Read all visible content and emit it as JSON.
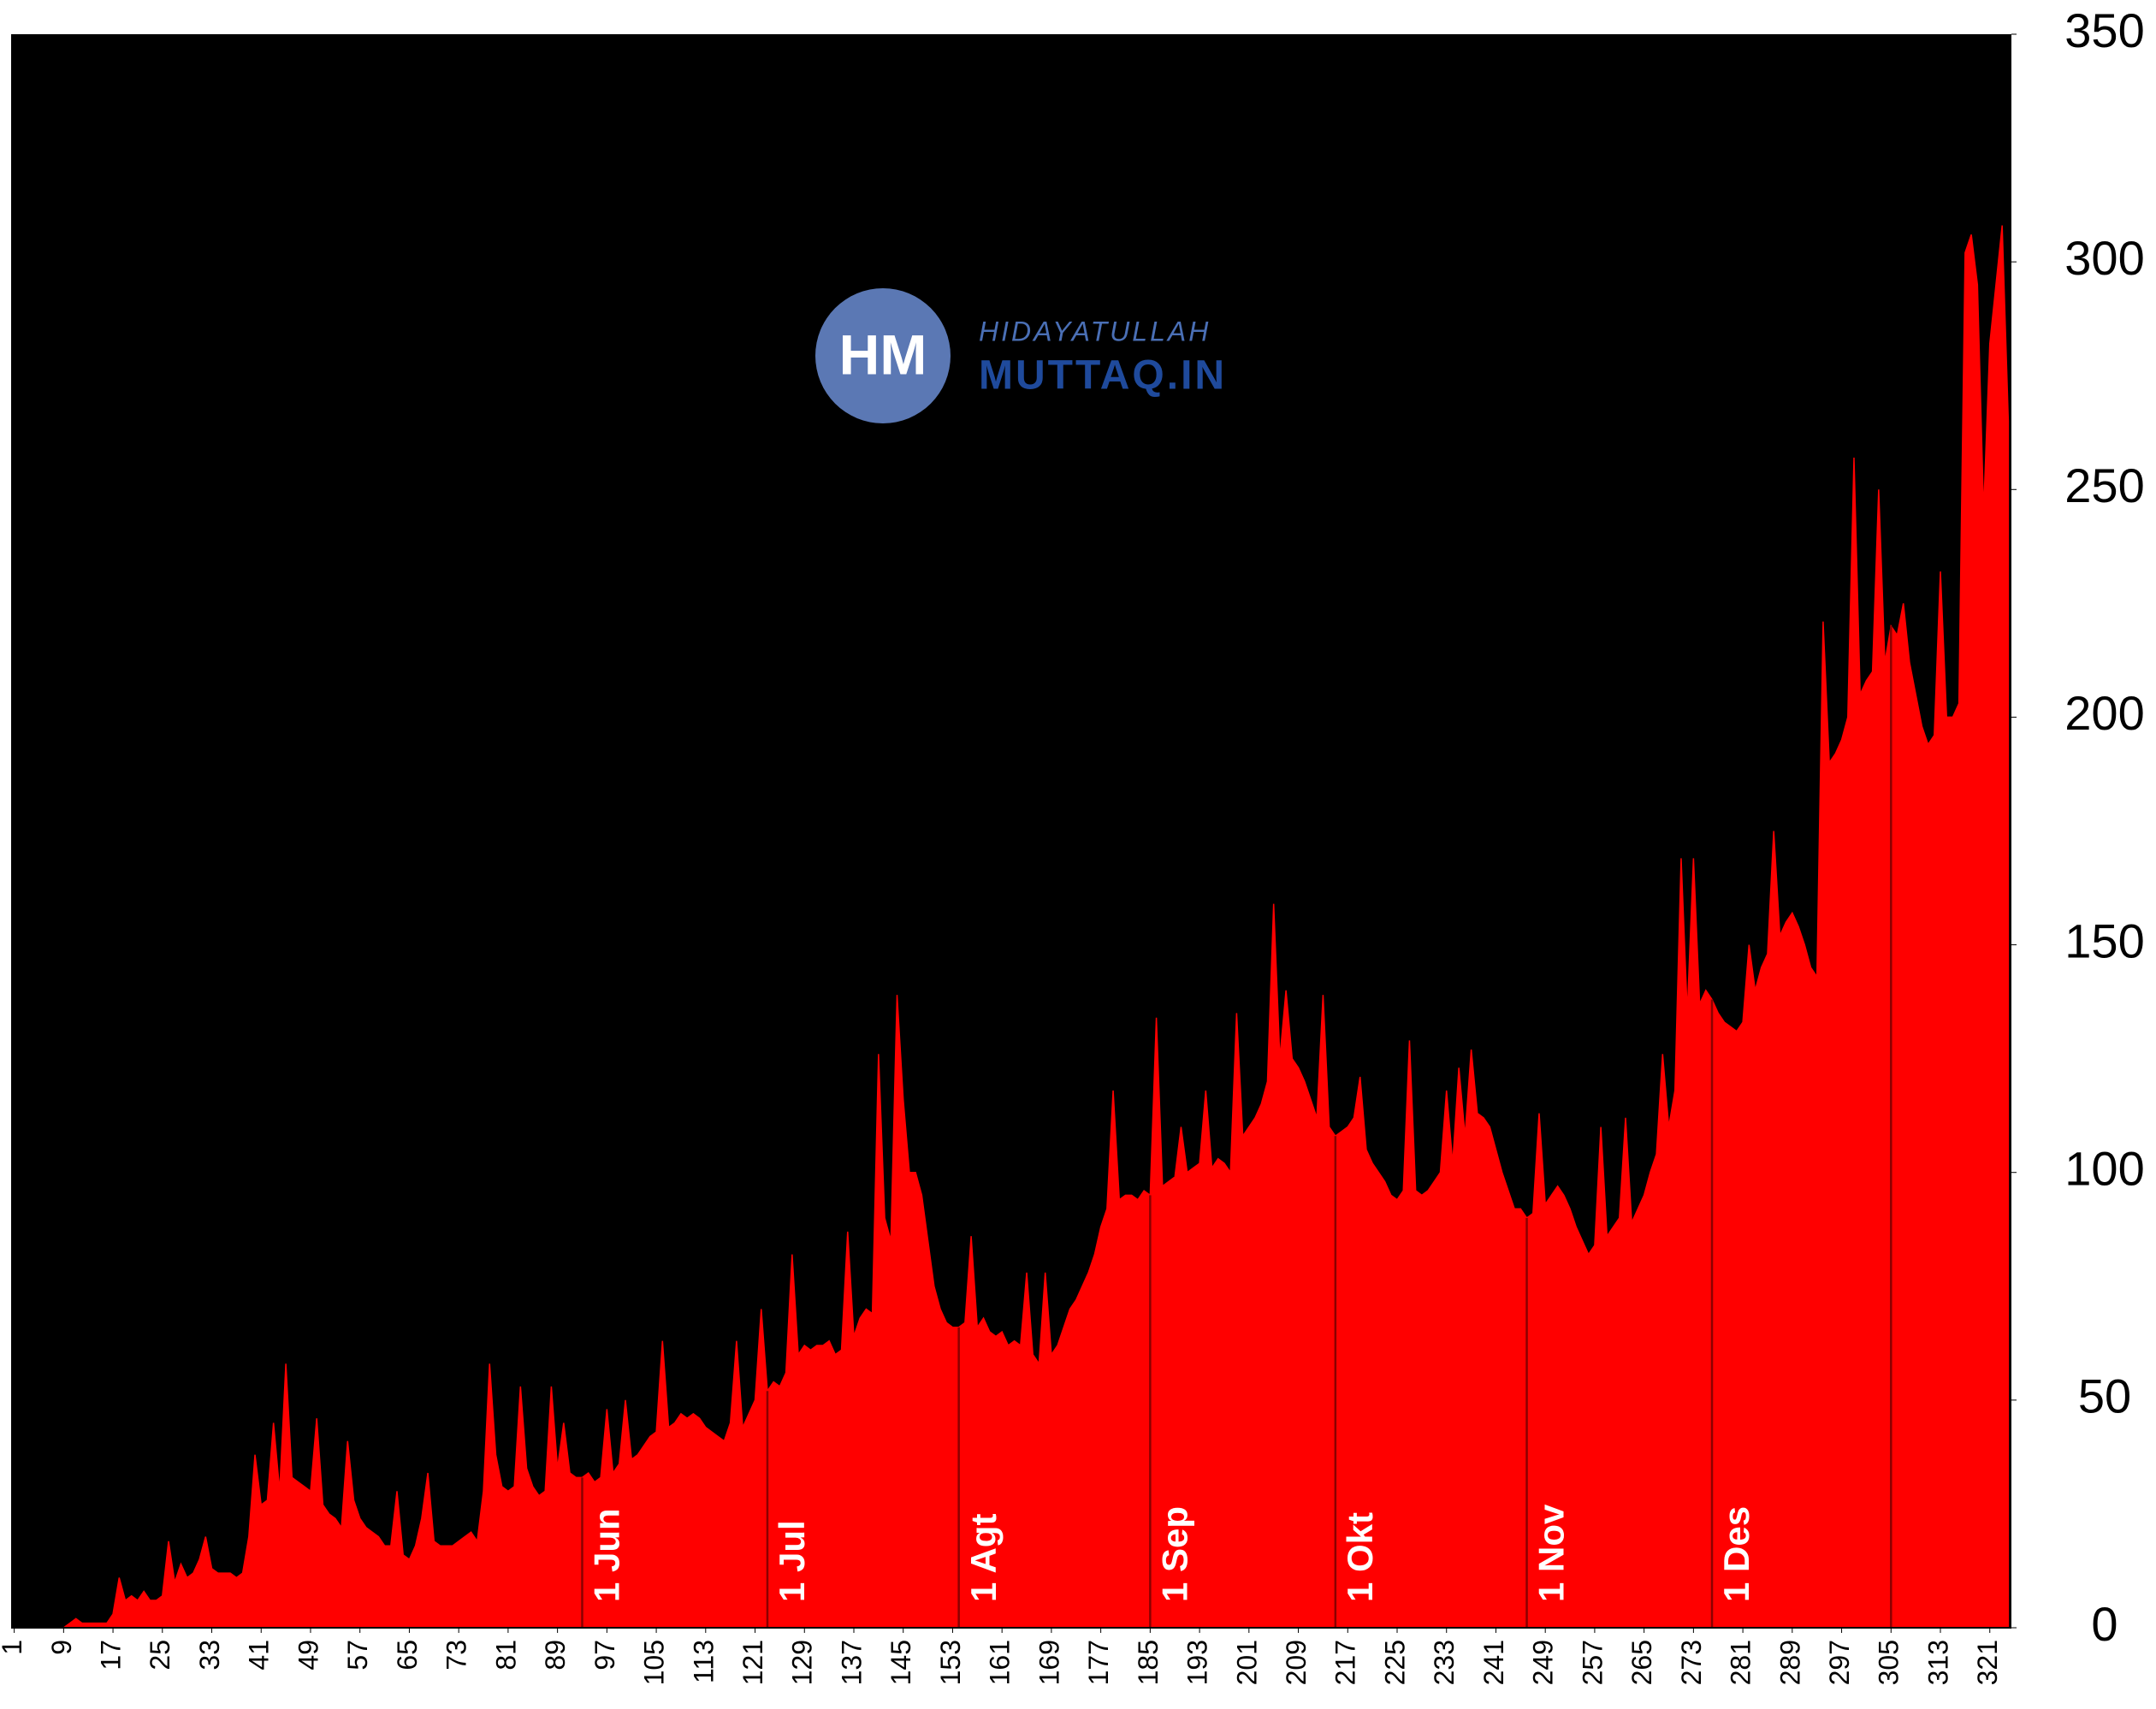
{
  "chart_data": {
    "type": "area",
    "color": "#ff0000",
    "background": "#000000",
    "x": [
      1,
      2,
      3,
      4,
      5,
      6,
      7,
      8,
      9,
      10,
      11,
      12,
      13,
      14,
      15,
      16,
      17,
      18,
      19,
      20,
      21,
      22,
      23,
      24,
      25,
      26,
      27,
      28,
      29,
      30,
      31,
      32,
      33,
      34,
      35,
      36,
      37,
      38,
      39,
      40,
      41,
      42,
      43,
      44,
      45,
      46,
      47,
      48,
      49,
      50,
      51,
      52,
      53,
      54,
      55,
      56,
      57,
      58,
      59,
      60,
      61,
      62,
      63,
      64,
      65,
      66,
      67,
      68,
      69,
      70,
      71,
      72,
      73,
      74,
      75,
      76,
      77,
      78,
      79,
      80,
      81,
      82,
      83,
      84,
      85,
      86,
      87,
      88,
      89,
      90,
      91,
      92,
      93,
      94,
      95,
      96,
      97,
      98,
      99,
      100,
      101,
      102,
      103,
      104,
      105,
      106,
      107,
      108,
      109,
      110,
      111,
      112,
      113,
      114,
      115,
      116,
      117,
      118,
      119,
      120,
      121,
      122,
      123,
      124,
      125,
      126,
      127,
      128,
      129,
      130,
      131,
      132,
      133,
      134,
      135,
      136,
      137,
      138,
      139,
      140,
      141,
      142,
      143,
      144,
      145,
      146,
      147,
      148,
      149,
      150,
      151,
      152,
      153,
      154,
      155,
      156,
      157,
      158,
      159,
      160,
      161,
      162,
      163,
      164,
      165,
      166,
      167,
      168,
      169,
      170,
      171,
      172,
      173,
      174,
      175,
      176,
      177,
      178,
      179,
      180,
      181,
      182,
      183,
      184,
      185,
      186,
      187,
      188,
      189,
      190,
      191,
      192,
      193,
      194,
      195,
      196,
      197,
      198,
      199,
      200,
      201,
      202,
      203,
      204,
      205,
      206,
      207,
      208,
      209,
      210,
      211,
      212,
      213,
      214,
      215,
      216,
      217,
      218,
      219,
      220,
      221,
      222,
      223,
      224,
      225,
      226,
      227,
      228,
      229,
      230,
      231,
      232,
      233,
      234,
      235,
      236,
      237,
      238,
      239,
      240,
      241,
      242,
      243,
      244,
      245,
      246,
      247,
      248,
      249,
      250,
      251,
      252,
      253,
      254,
      255,
      256,
      257,
      258,
      259,
      260,
      261,
      262,
      263,
      264,
      265,
      266,
      267,
      268,
      269,
      270,
      271,
      272,
      273,
      274,
      275,
      276,
      277,
      278,
      279,
      280,
      281,
      282,
      283,
      284,
      285,
      286,
      287,
      288,
      289,
      290,
      291,
      292,
      293,
      294,
      295,
      296,
      297,
      298,
      299,
      300,
      301,
      302,
      303,
      304,
      305,
      306,
      307,
      308,
      309,
      310,
      311,
      312,
      313,
      314,
      315,
      316,
      317,
      318,
      319,
      320,
      321,
      322,
      323,
      324
    ],
    "values": [
      0,
      0,
      0,
      0,
      0,
      0,
      0,
      0,
      0,
      1,
      2,
      1,
      1,
      1,
      1,
      1,
      3,
      11,
      6,
      7,
      6,
      8,
      6,
      6,
      7,
      19,
      10,
      14,
      11,
      12,
      15,
      20,
      13,
      12,
      12,
      12,
      11,
      12,
      20,
      38,
      27,
      28,
      45,
      30,
      58,
      33,
      32,
      31,
      30,
      46,
      27,
      25,
      24,
      22,
      41,
      28,
      24,
      22,
      21,
      20,
      18,
      18,
      30,
      16,
      15,
      18,
      24,
      34,
      19,
      18,
      18,
      18,
      19,
      20,
      21,
      19,
      30,
      58,
      38,
      31,
      30,
      31,
      53,
      35,
      31,
      29,
      30,
      53,
      35,
      45,
      34,
      33,
      33,
      34,
      32,
      33,
      48,
      34,
      36,
      50,
      37,
      38,
      40,
      42,
      43,
      63,
      44,
      45,
      47,
      46,
      47,
      46,
      44,
      43,
      42,
      41,
      45,
      63,
      44,
      47,
      50,
      70,
      52,
      54,
      53,
      56,
      82,
      60,
      62,
      61,
      62,
      62,
      63,
      60,
      61,
      87,
      64,
      68,
      70,
      69,
      126,
      90,
      85,
      139,
      116,
      100,
      100,
      95,
      85,
      75,
      70,
      67,
      66,
      66,
      67,
      86,
      66,
      68,
      65,
      64,
      65,
      62,
      63,
      62,
      78,
      60,
      58,
      78,
      60,
      62,
      66,
      70,
      72,
      75,
      78,
      82,
      88,
      92,
      118,
      94,
      95,
      95,
      94,
      96,
      95,
      134,
      97,
      98,
      99,
      110,
      100,
      101,
      102,
      118,
      101,
      103,
      102,
      100,
      135,
      108,
      110,
      112,
      115,
      120,
      159,
      125,
      140,
      125,
      123,
      120,
      116,
      112,
      139,
      110,
      108,
      109,
      110,
      112,
      121,
      105,
      102,
      100,
      98,
      95,
      94,
      96,
      129,
      96,
      95,
      96,
      98,
      100,
      118,
      102,
      123,
      108,
      127,
      113,
      112,
      110,
      105,
      100,
      96,
      92,
      92,
      90,
      91,
      113,
      93,
      95,
      97,
      95,
      92,
      88,
      85,
      82,
      84,
      110,
      86,
      88,
      90,
      112,
      89,
      92,
      95,
      100,
      104,
      126,
      110,
      118,
      169,
      135,
      169,
      137,
      140,
      138,
      135,
      133,
      132,
      131,
      133,
      150,
      140,
      145,
      148,
      175,
      152,
      155,
      157,
      154,
      150,
      145,
      143,
      221,
      190,
      192,
      195,
      200,
      257,
      205,
      208,
      210,
      250,
      212,
      220,
      218,
      225,
      212,
      205,
      198,
      194,
      196,
      232,
      200,
      200,
      203,
      302,
      306,
      295,
      245,
      282,
      295,
      308,
      265
    ],
    "xlim": [
      1,
      324
    ],
    "xticks": [
      1,
      9,
      17,
      25,
      33,
      41,
      49,
      57,
      65,
      73,
      81,
      89,
      97,
      105,
      113,
      121,
      129,
      137,
      145,
      153,
      161,
      169,
      177,
      185,
      193,
      201,
      209,
      217,
      225,
      233,
      241,
      249,
      257,
      265,
      273,
      281,
      289,
      297,
      305,
      313,
      321
    ],
    "ylim": [
      0,
      350
    ],
    "yticks": [
      0,
      50,
      100,
      150,
      200,
      250,
      300,
      350
    ],
    "annotations": [
      {
        "text": "1 Jun",
        "x": 93
      },
      {
        "text": "1 Jul",
        "x": 123
      },
      {
        "text": "1 Agt",
        "x": 154
      },
      {
        "text": "1 Sep",
        "x": 185
      },
      {
        "text": "1 Okt",
        "x": 215
      },
      {
        "text": "1 Nov",
        "x": 246
      },
      {
        "text": "1 Des",
        "x": 276
      },
      {
        "text": "",
        "x": 305
      }
    ]
  },
  "logo": {
    "initials": "HM",
    "line1": "HIDAYATULLAH",
    "line2": "MUTTAQ.IN"
  }
}
